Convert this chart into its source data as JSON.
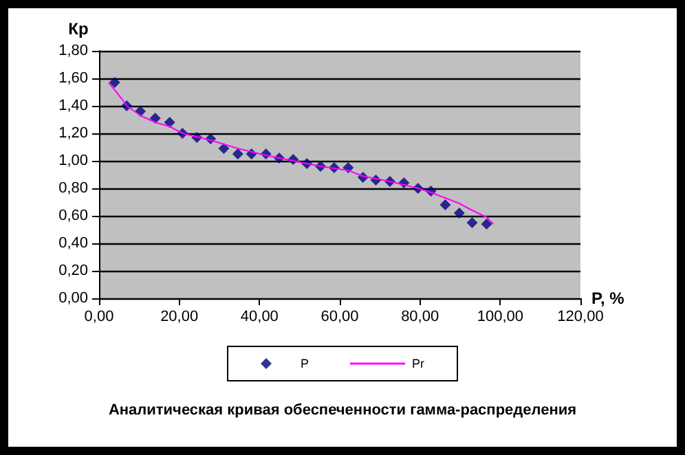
{
  "chart_data": {
    "type": "scatter",
    "title": "Аналитическая кривая обеспеченности гамма-распределения",
    "xlabel": "P, %",
    "ylabel": "Кр",
    "xlim": [
      0,
      120
    ],
    "xticks": [
      {
        "value": 0,
        "label": "0,00"
      },
      {
        "value": 20,
        "label": "20,00"
      },
      {
        "value": 40,
        "label": "40,00"
      },
      {
        "value": 60,
        "label": "60,00"
      },
      {
        "value": 80,
        "label": "80,00"
      },
      {
        "value": 100,
        "label": "100,00"
      },
      {
        "value": 120,
        "label": "120,00"
      }
    ],
    "ylim": [
      0,
      1.8
    ],
    "yticks": [
      {
        "value": 0,
        "label": "0,00"
      },
      {
        "value": 0.2,
        "label": "0,20"
      },
      {
        "value": 0.4,
        "label": "0,40"
      },
      {
        "value": 0.6,
        "label": "0,60"
      },
      {
        "value": 0.8,
        "label": "0,80"
      },
      {
        "value": 1.0,
        "label": "1,00"
      },
      {
        "value": 1.2,
        "label": "1,20"
      },
      {
        "value": 1.4,
        "label": "1,40"
      },
      {
        "value": 1.6,
        "label": "1,60"
      },
      {
        "value": 1.8,
        "label": "1,80"
      }
    ],
    "grid": "y",
    "legend": "bottom",
    "series": [
      {
        "name": "P",
        "marker": "diamond",
        "color": "#000080",
        "x": [
          3.9,
          6.9,
          10.3,
          14.0,
          17.6,
          20.8,
          24.4,
          27.8,
          31.1,
          34.6,
          38.0,
          41.6,
          44.9,
          48.4,
          51.8,
          55.2,
          58.6,
          62.1,
          65.8,
          69.0,
          72.5,
          76.0,
          79.5,
          82.7,
          86.3,
          89.8,
          93.0,
          96.6
        ],
        "values": [
          1.57,
          1.4,
          1.36,
          1.31,
          1.28,
          1.2,
          1.17,
          1.16,
          1.09,
          1.05,
          1.05,
          1.05,
          1.02,
          1.01,
          0.98,
          0.96,
          0.95,
          0.95,
          0.88,
          0.86,
          0.85,
          0.84,
          0.8,
          0.78,
          0.68,
          0.62,
          0.55,
          0.54
        ]
      },
      {
        "name": "Pr",
        "type": "line",
        "marker": "none",
        "line_style": "solid",
        "color": "#ff00ff",
        "x": [
          2.4,
          5.7,
          6.9,
          10.3,
          14.0,
          17.6,
          20.8,
          27.8,
          34.6,
          41.6,
          48.4,
          55.2,
          62.1,
          65.6,
          72.5,
          79.5,
          82.7,
          86.3,
          89.8,
          93.0,
          96.6,
          98.3
        ],
        "values": [
          1.57,
          1.45,
          1.4,
          1.33,
          1.28,
          1.25,
          1.2,
          1.15,
          1.09,
          1.04,
          1.0,
          0.96,
          0.93,
          0.89,
          0.85,
          0.8,
          0.77,
          0.73,
          0.69,
          0.64,
          0.59,
          0.54
        ]
      }
    ]
  }
}
